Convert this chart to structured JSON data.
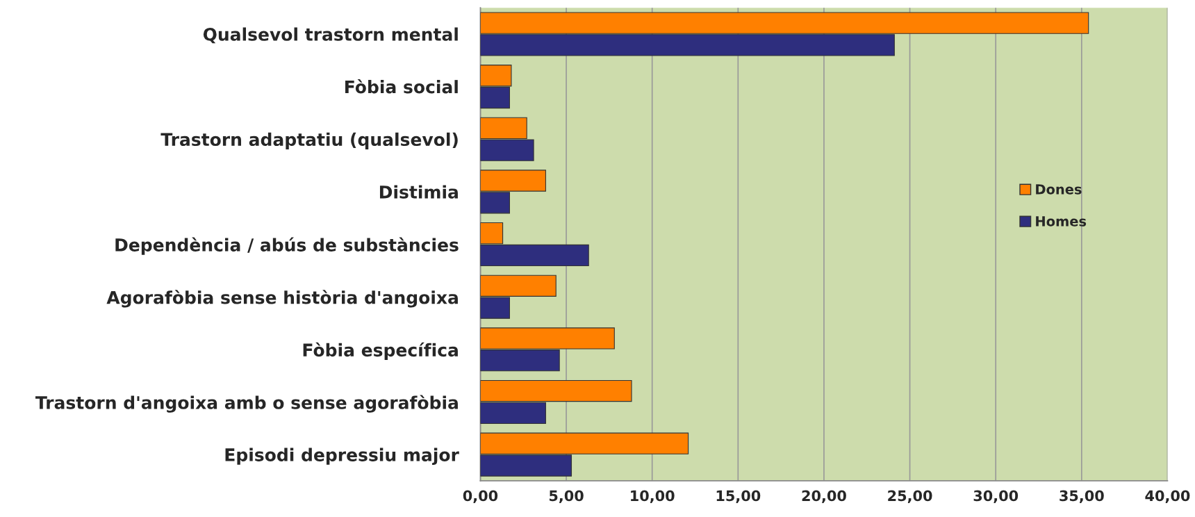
{
  "chart_data": {
    "type": "bar",
    "orientation": "horizontal",
    "categories": [
      "Qualsevol trastorn mental",
      "Fòbia social",
      "Trastorn adaptatiu (qualsevol)",
      "Distimia",
      "Dependència / abús de substàncies",
      "Agorafòbia sense història d'angoixa",
      "Fòbia específica",
      "Trastorn d'angoixa amb o sense agorafòbia",
      "Episodi depressiu major"
    ],
    "series": [
      {
        "name": "Dones",
        "color": "#ff8000",
        "values": [
          35.4,
          1.8,
          2.7,
          3.8,
          1.3,
          4.4,
          7.8,
          8.8,
          12.1
        ]
      },
      {
        "name": "Homes",
        "color": "#2e2e7e",
        "values": [
          24.1,
          1.7,
          3.1,
          1.7,
          6.3,
          1.7,
          4.6,
          3.8,
          5.3
        ]
      }
    ],
    "xlim": [
      0,
      40
    ],
    "xticks": [
      {
        "value": 0,
        "label": "0,00"
      },
      {
        "value": 5,
        "label": "5,00"
      },
      {
        "value": 10,
        "label": "10,00"
      },
      {
        "value": 15,
        "label": "15,00"
      },
      {
        "value": 20,
        "label": "20,00"
      },
      {
        "value": 25,
        "label": "25,00"
      },
      {
        "value": 30,
        "label": "30,00"
      },
      {
        "value": 35,
        "label": "35,00"
      },
      {
        "value": 40,
        "label": "40,00"
      }
    ],
    "grid": "x",
    "legend": "center right"
  }
}
